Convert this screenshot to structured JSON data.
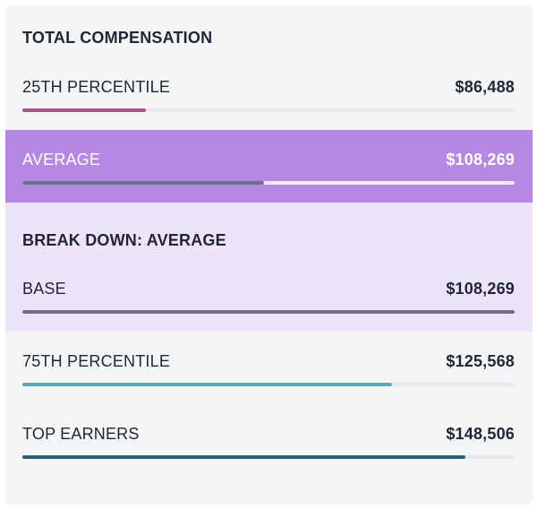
{
  "header": {
    "title": "TOTAL COMPENSATION"
  },
  "rows": {
    "p25": {
      "label": "25TH PERCENTILE",
      "value": "$86,488",
      "bar_fraction": 0.25,
      "bar_color": "#a8558d"
    },
    "average": {
      "label": "AVERAGE",
      "value": "$108,269",
      "bar_fraction": 0.49,
      "bar_color": "#6d7386"
    },
    "p75": {
      "label": "75TH PERCENTILE",
      "value": "$125,568",
      "bar_fraction": 0.75,
      "bar_color": "#5aa6b3"
    },
    "top": {
      "label": "TOP EARNERS",
      "value": "$148,506",
      "bar_fraction": 0.9,
      "bar_color": "#2f5e70"
    }
  },
  "breakdown": {
    "title": "BREAK DOWN: AVERAGE",
    "base": {
      "label": "BASE",
      "value": "$108,269",
      "bar_fraction": 1.0,
      "bar_color": "#6d7386"
    }
  },
  "colors": {
    "card_bg": "#f4f5f7",
    "average_band": "#b687e5",
    "breakdown_bg": "#ede4fb",
    "text": "#1f2733"
  }
}
